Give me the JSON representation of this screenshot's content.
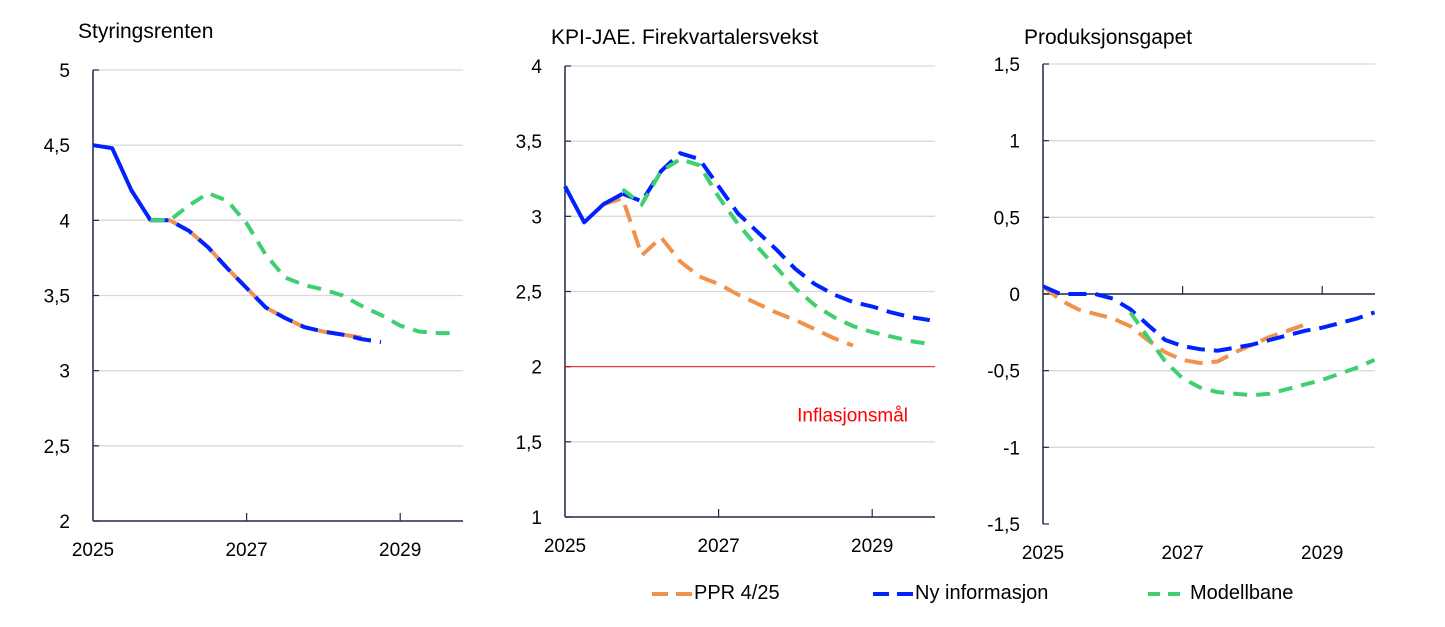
{
  "colors": {
    "ppr": "#F0924C",
    "ny": "#0022FF",
    "modell": "#3ECF70",
    "target": "#FF0000",
    "grid": "#D9D9D9",
    "axis": "#1F2A44"
  },
  "legend": [
    {
      "key": "ppr",
      "label": "PPR 4/25"
    },
    {
      "key": "ny",
      "label": "Ny informasjon"
    },
    {
      "key": "modell",
      "label": "Modellbane"
    }
  ],
  "chart_data": [
    {
      "type": "line",
      "title": "Styringsrenten",
      "x_unit": "quarter",
      "x_start": "2025Q1",
      "x_ticks": [
        "2025",
        "2027",
        "2029"
      ],
      "ylim": [
        2,
        5
      ],
      "y_ticks": [
        "2",
        "2,5",
        "3",
        "3,5",
        "4",
        "4,5",
        "5"
      ],
      "grid": true,
      "series": [
        {
          "key": "ppr",
          "start": 2,
          "values": [
            4.2,
            4.0,
            4.0,
            3.93,
            3.82,
            3.68,
            3.55,
            3.42,
            3.35,
            3.29,
            3.26,
            3.24,
            3.22
          ]
        },
        {
          "key": "ny",
          "start": 0,
          "solid_until": 3,
          "values": [
            4.5,
            4.48,
            4.2,
            4.0,
            4.0,
            3.93,
            3.82,
            3.68,
            3.55,
            3.42,
            3.35,
            3.29,
            3.26,
            3.24,
            3.21,
            3.19
          ]
        },
        {
          "key": "modell",
          "start": 3,
          "values": [
            4.0,
            4.0,
            4.1,
            4.18,
            4.13,
            3.98,
            3.77,
            3.62,
            3.57,
            3.54,
            3.5,
            3.43,
            3.37,
            3.3,
            3.26,
            3.25,
            3.25
          ]
        }
      ]
    },
    {
      "type": "line",
      "title": "KPI-JAE. Firekvartalersvekst",
      "x_unit": "quarter",
      "x_start": "2025Q1",
      "x_ticks": [
        "2025",
        "2027",
        "2029"
      ],
      "ylim": [
        1,
        4
      ],
      "y_ticks": [
        "1",
        "1,5",
        "2",
        "2,5",
        "3",
        "3,5",
        "4"
      ],
      "grid": true,
      "reference_line": {
        "value": 2,
        "label": "Inflasjonsmål"
      },
      "series": [
        {
          "key": "ppr",
          "start": 2,
          "values": [
            3.08,
            3.12,
            2.74,
            2.86,
            2.7,
            2.6,
            2.55,
            2.48,
            2.42,
            2.36,
            2.31,
            2.25,
            2.19,
            2.14
          ]
        },
        {
          "key": "ny",
          "start": 0,
          "solid_until": 3,
          "values": [
            3.2,
            2.96,
            3.08,
            3.15,
            3.1,
            3.3,
            3.42,
            3.38,
            3.2,
            3.02,
            2.9,
            2.78,
            2.65,
            2.55,
            2.48,
            2.43,
            2.4,
            2.36,
            2.33,
            2.31
          ]
        },
        {
          "key": "modell",
          "start": 3,
          "values": [
            3.18,
            3.08,
            3.3,
            3.38,
            3.34,
            3.13,
            2.95,
            2.8,
            2.66,
            2.52,
            2.41,
            2.33,
            2.27,
            2.23,
            2.2,
            2.17,
            2.15
          ]
        }
      ]
    },
    {
      "type": "line",
      "title": "Produksjonsgapet",
      "x_unit": "quarter",
      "x_start": "2025Q1",
      "x_ticks": [
        "2025",
        "2027",
        "2029"
      ],
      "ylim": [
        -1.5,
        1.5
      ],
      "y_ticks": [
        "-1,5",
        "-1",
        "-0,5",
        "0",
        "0,5",
        "1",
        "1,5"
      ],
      "grid": true,
      "series": [
        {
          "key": "ppr",
          "start": 0,
          "values": [
            0.05,
            -0.04,
            -0.1,
            -0.13,
            -0.16,
            -0.21,
            -0.3,
            -0.38,
            -0.43,
            -0.45,
            -0.44,
            -0.38,
            -0.33,
            -0.28,
            -0.24,
            -0.2
          ]
        },
        {
          "key": "ny",
          "start": 0,
          "values": [
            0.05,
            0,
            0,
            0,
            -0.03,
            -0.1,
            -0.2,
            -0.3,
            -0.34,
            -0.36,
            -0.37,
            -0.35,
            -0.33,
            -0.3,
            -0.27,
            -0.24,
            -0.22,
            -0.19,
            -0.16,
            -0.12
          ]
        },
        {
          "key": "modell",
          "start": 5,
          "values": [
            -0.12,
            -0.28,
            -0.44,
            -0.55,
            -0.61,
            -0.64,
            -0.65,
            -0.66,
            -0.65,
            -0.62,
            -0.59,
            -0.56,
            -0.52,
            -0.48,
            -0.43
          ]
        }
      ]
    }
  ]
}
